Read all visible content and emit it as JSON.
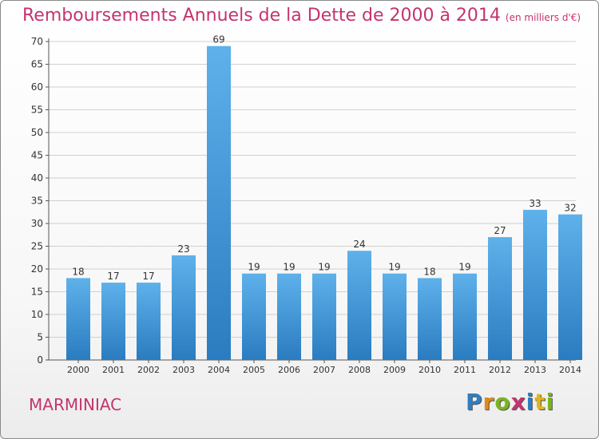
{
  "header": {
    "title": "Remboursements Annuels de la Dette de 2000 à 2014",
    "unit": "(en milliers d'€)"
  },
  "footer": {
    "commune": "MARMINIAC",
    "logo": "Proxiti"
  },
  "colors": {
    "title": "#c4346e",
    "bar_top": "#5eb1ea",
    "bar_bottom": "#2a7cc0",
    "grid": "#d0d0d0",
    "logo_letters": [
      "#2f7ec0",
      "#e08a1e",
      "#7ab51d",
      "#c4346e",
      "#2f7ec0",
      "#e0b21e",
      "#7ab51d"
    ]
  },
  "chart_data": {
    "type": "bar",
    "title": "Remboursements Annuels de la Dette de 2000 à 2014",
    "subtitle": "(en milliers d'€)",
    "categories": [
      "2000",
      "2001",
      "2002",
      "2003",
      "2004",
      "2005",
      "2006",
      "2007",
      "2008",
      "2009",
      "2010",
      "2011",
      "2012",
      "2013",
      "2014"
    ],
    "values": [
      18,
      17,
      17,
      23,
      69,
      19,
      19,
      19,
      24,
      19,
      18,
      19,
      27,
      33,
      32
    ],
    "ylim": [
      0,
      70
    ],
    "yticks": [
      0,
      5,
      10,
      15,
      20,
      25,
      30,
      35,
      40,
      45,
      50,
      55,
      60,
      65,
      70
    ],
    "grid": true,
    "xlabel": "",
    "ylabel": ""
  }
}
